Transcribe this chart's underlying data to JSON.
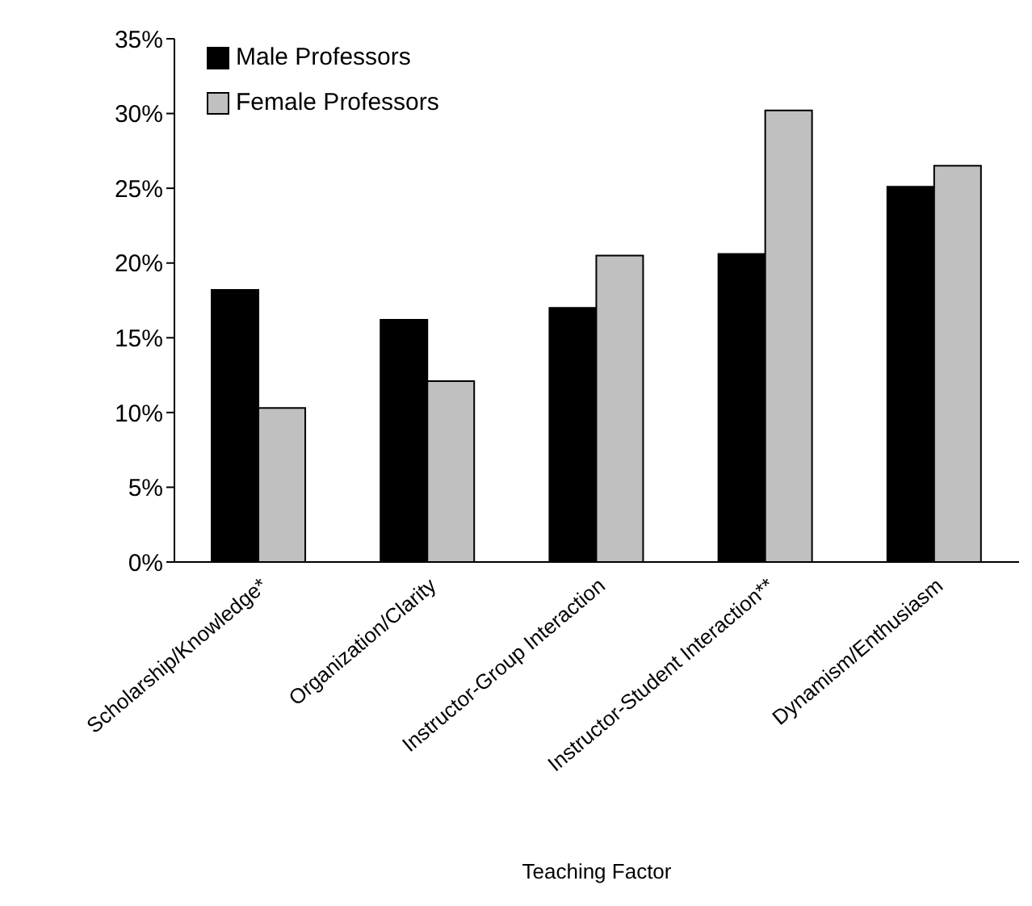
{
  "chart_data": {
    "type": "bar",
    "xlabel": "Teaching Factor",
    "categories": [
      "Scholarship/Knowledge*",
      "Organization/Clarity",
      "Instructor-Group Interaction",
      "Instructor-Student Interaction**",
      "Dynamism/Enthusiasm"
    ],
    "series": [
      {
        "name": "Male Professors",
        "color": "#000000",
        "values": [
          18.2,
          16.2,
          17.0,
          20.6,
          25.1
        ]
      },
      {
        "name": "Female Professors",
        "color": "#c0c0c0",
        "values": [
          10.3,
          12.1,
          20.5,
          30.2,
          26.5
        ]
      }
    ],
    "ylim": [
      0,
      35
    ],
    "yticks": [
      {
        "value": 0,
        "label": "0%"
      },
      {
        "value": 5,
        "label": "5%"
      },
      {
        "value": 10,
        "label": "10%"
      },
      {
        "value": 15,
        "label": "15%"
      },
      {
        "value": 20,
        "label": "20%"
      },
      {
        "value": 25,
        "label": "25%"
      },
      {
        "value": 30,
        "label": "30%"
      },
      {
        "value": 35,
        "label": "35%"
      }
    ],
    "grid": false,
    "legend": "top left"
  }
}
